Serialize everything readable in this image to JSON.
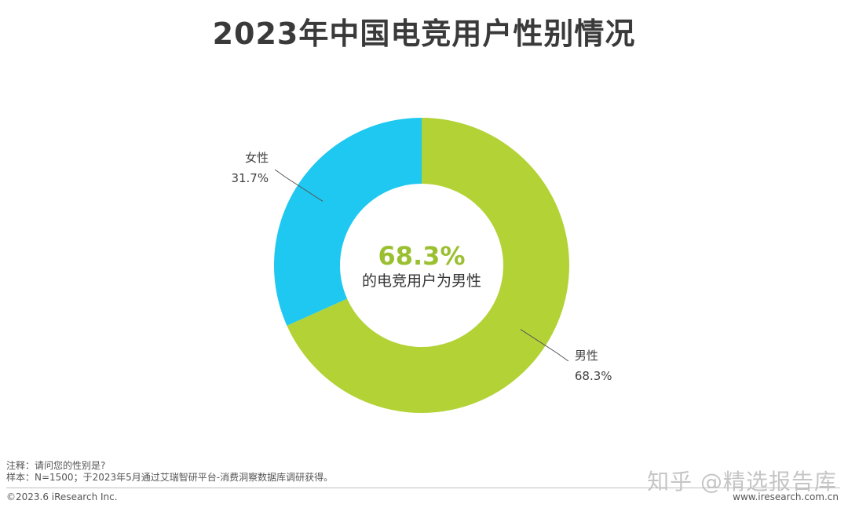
{
  "header": {
    "title": "2023年中国电竞用户性别情况"
  },
  "chart_data": {
    "type": "pie",
    "variant": "donut",
    "slices": [
      {
        "name": "男性",
        "value": 68.3,
        "label": "68.3%",
        "color": "#b2d235"
      },
      {
        "name": "女性",
        "value": 31.7,
        "label": "31.7%",
        "color": "#1ec8f0"
      }
    ],
    "center_value": "68.3%",
    "center_caption": "的电竞用户为男性",
    "center_color": "#9ac031"
  },
  "footer": {
    "note_line1": "注释：请问您的性别是?",
    "note_line2": "样本：N=1500；于2023年5月通过艾瑞智研平台-消费洞察数据库调研获得。",
    "copyright": "©2023.6 iResearch Inc.",
    "website": "www.iresearch.com.cn",
    "watermark": "知乎 @精选报告库"
  }
}
